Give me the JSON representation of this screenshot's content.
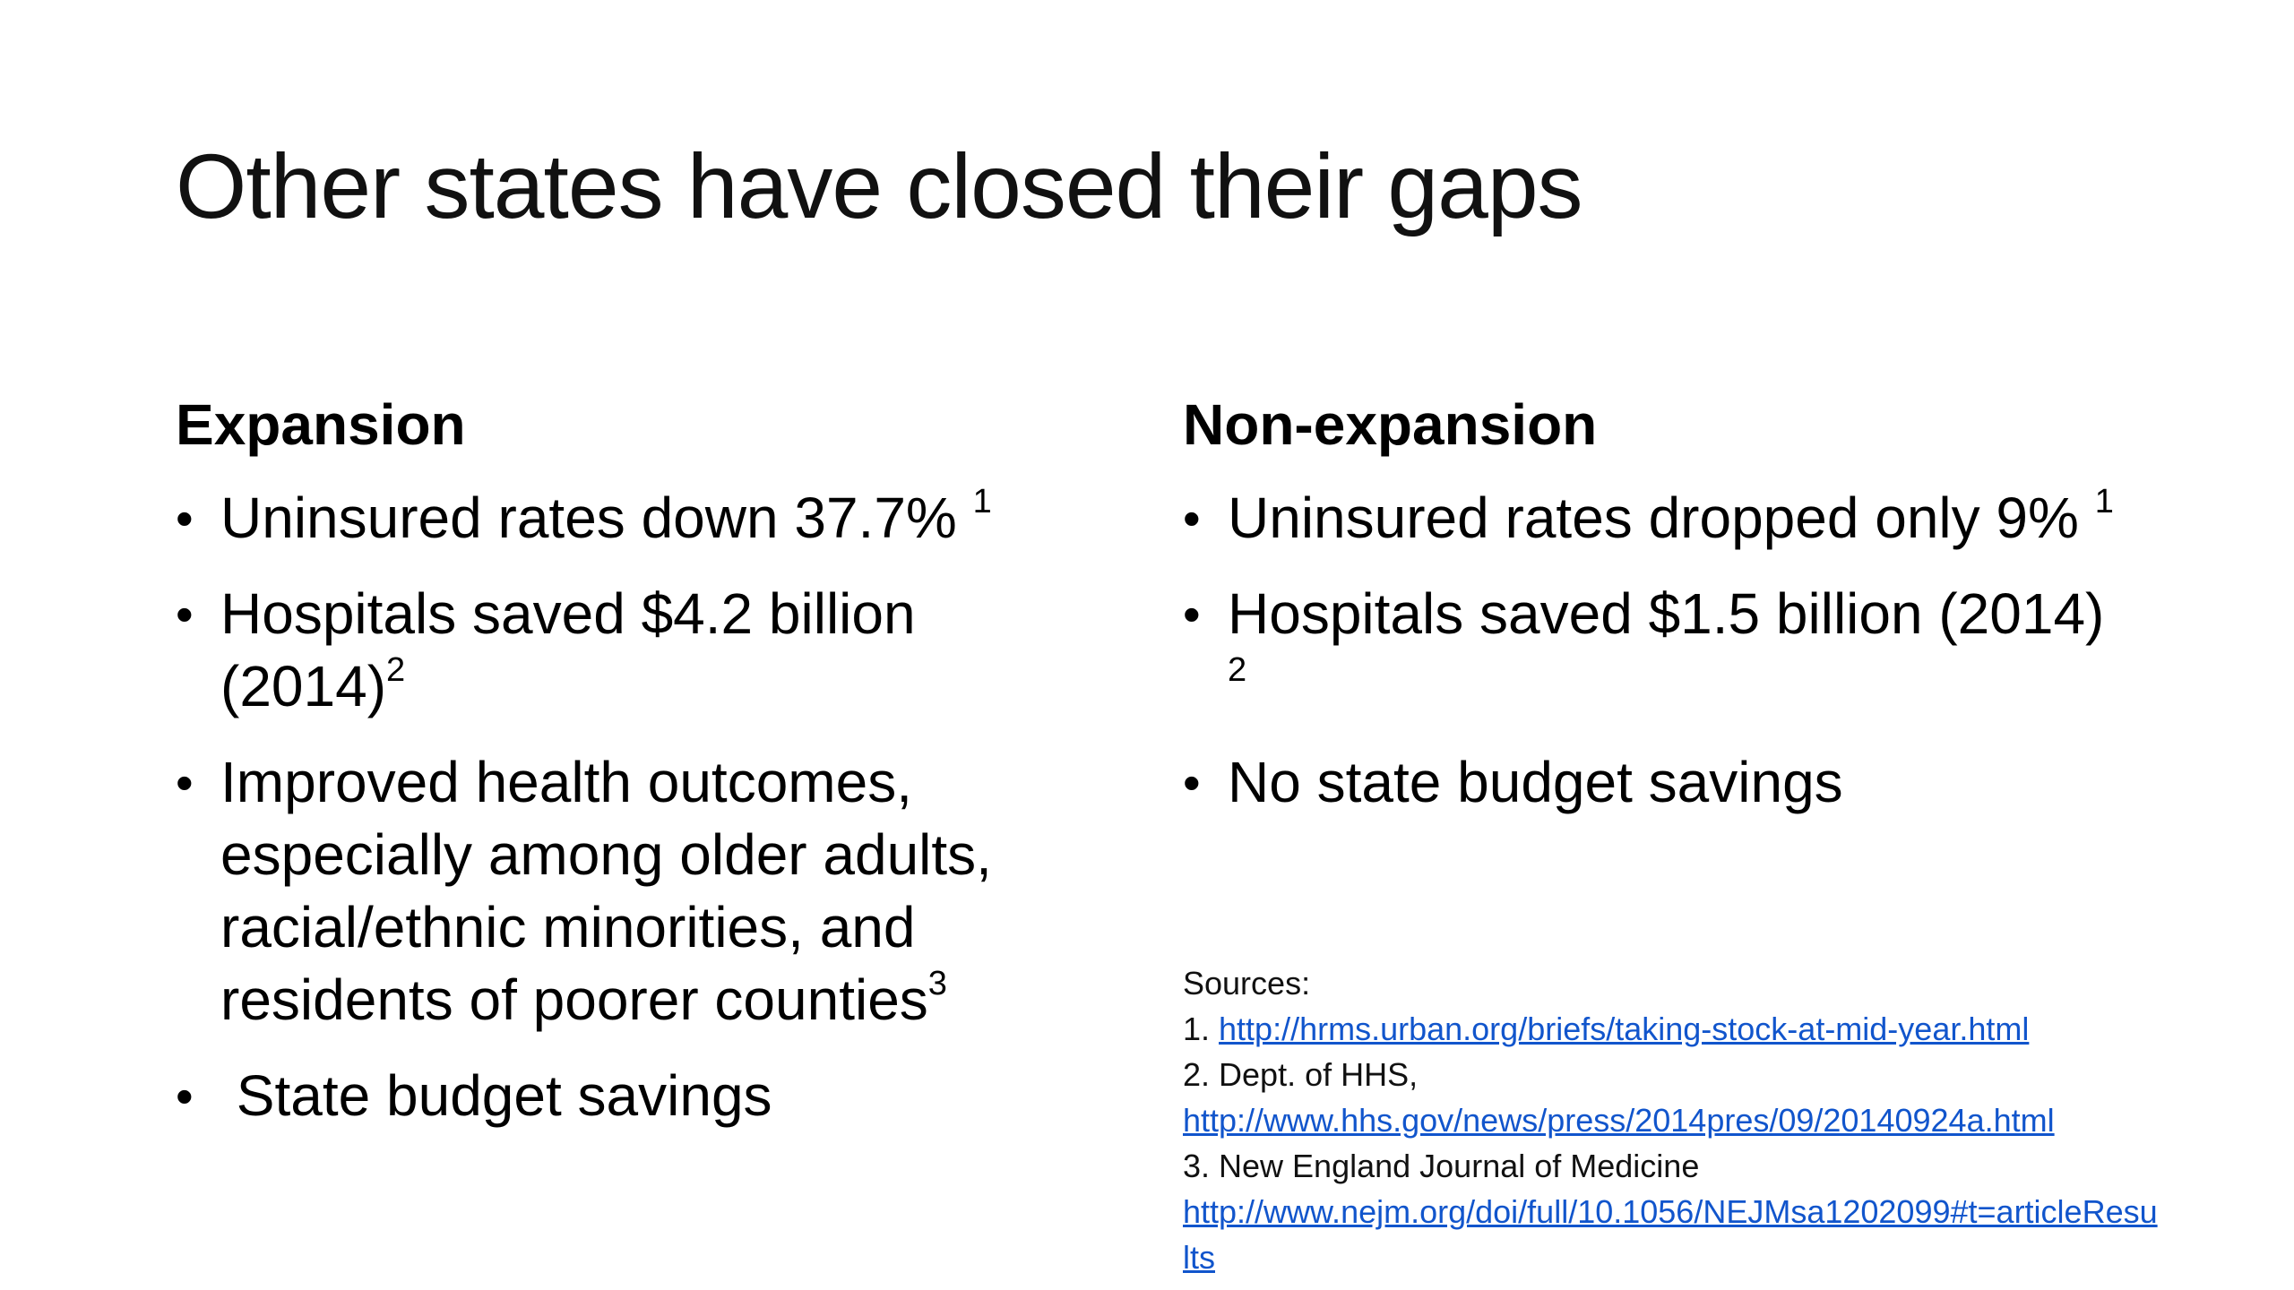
{
  "title": "Other states have closed their gaps",
  "left": {
    "heading": "Expansion",
    "items": [
      {
        "text": "Uninsured rates down 37.7% ",
        "sup": "1"
      },
      {
        "text": "Hospitals saved $4.2 billion (2014)",
        "sup": "2"
      },
      {
        "text": "Improved health outcomes, especially among older adults, racial/ethnic minorities, and residents of poorer counties",
        "sup": "3"
      },
      {
        "text": " State budget savings",
        "sup": ""
      }
    ]
  },
  "right": {
    "heading": "Non-expansion",
    "items": [
      {
        "text": "Uninsured rates dropped only 9% ",
        "sup": "1"
      },
      {
        "text": "Hospitals saved $1.5 billion (2014) ",
        "sup": "2"
      },
      {
        "text": "No state budget savings",
        "sup": ""
      }
    ]
  },
  "sources": {
    "label": "Sources:",
    "s1_prefix": "1. ",
    "s1_link": "http://hrms.urban.org/briefs/taking-stock-at-mid-year.html",
    "s2_prefix": "2. Dept. of HHS,",
    "s2_link": "http://www.hhs.gov/news/press/2014pres/09/20140924a.html",
    "s3_prefix": "3. New England Journal of Medicine",
    "s3_link_a": "http://www.nejm.org/doi/full/10.1056/NEJMsa1202099#t=articleResu",
    "s3_link_b": "lts"
  },
  "colors": {
    "link": "#1155cc",
    "text": "#000000",
    "background": "#ffffff"
  }
}
